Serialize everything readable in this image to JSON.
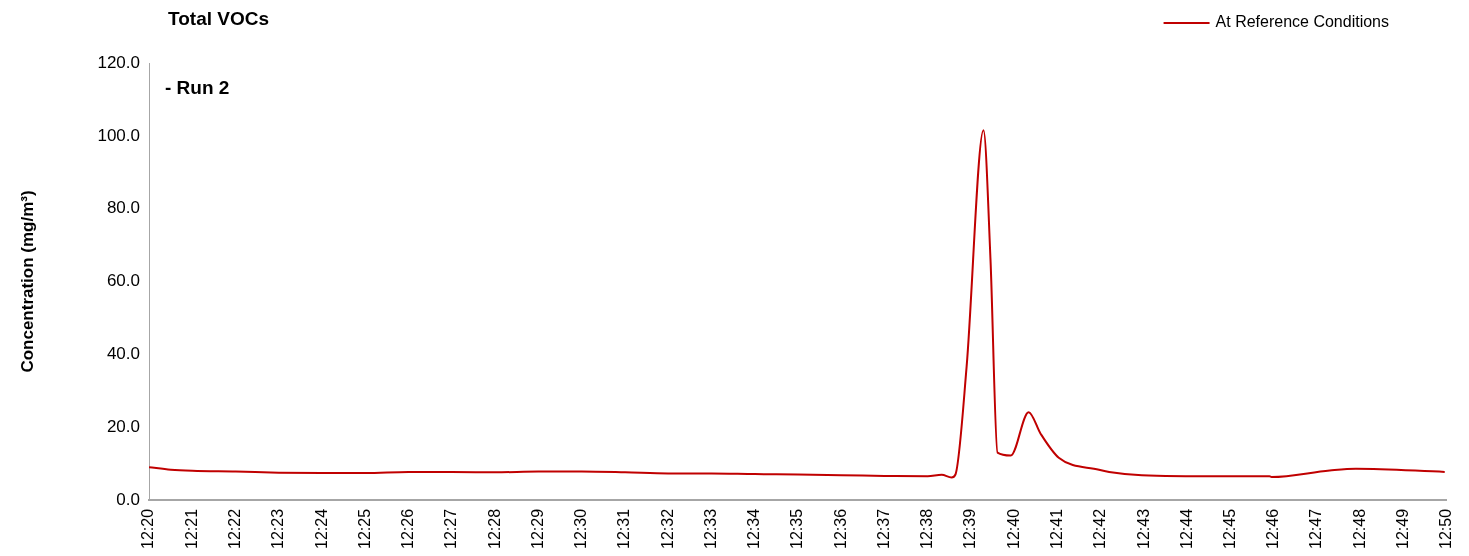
{
  "chart_data": {
    "type": "line",
    "title": "Total VOCs",
    "ylabel": "Concentration (mg/m³)",
    "annotations": [
      "- Run 2"
    ],
    "legend": "top right",
    "marker": "none",
    "line_style": "solid",
    "grid": false,
    "xlim": [
      12.3333,
      12.8333
    ],
    "xticks": [
      {
        "value": 12.3333,
        "label": "12:20"
      },
      {
        "value": 12.35,
        "label": "12:21"
      },
      {
        "value": 12.3667,
        "label": "12:22"
      },
      {
        "value": 12.3833,
        "label": "12:23"
      },
      {
        "value": 12.4,
        "label": "12:24"
      },
      {
        "value": 12.4167,
        "label": "12:25"
      },
      {
        "value": 12.4333,
        "label": "12:26"
      },
      {
        "value": 12.45,
        "label": "12:27"
      },
      {
        "value": 12.4667,
        "label": "12:28"
      },
      {
        "value": 12.4833,
        "label": "12:29"
      },
      {
        "value": 12.5,
        "label": "12:30"
      },
      {
        "value": 12.5167,
        "label": "12:31"
      },
      {
        "value": 12.5333,
        "label": "12:32"
      },
      {
        "value": 12.55,
        "label": "12:33"
      },
      {
        "value": 12.5667,
        "label": "12:34"
      },
      {
        "value": 12.5833,
        "label": "12:35"
      },
      {
        "value": 12.6,
        "label": "12:36"
      },
      {
        "value": 12.6167,
        "label": "12:37"
      },
      {
        "value": 12.6333,
        "label": "12:38"
      },
      {
        "value": 12.65,
        "label": "12:39"
      },
      {
        "value": 12.6667,
        "label": "12:40"
      },
      {
        "value": 12.6833,
        "label": "12:41"
      },
      {
        "value": 12.7,
        "label": "12:42"
      },
      {
        "value": 12.7167,
        "label": "12:43"
      },
      {
        "value": 12.7333,
        "label": "12:44"
      },
      {
        "value": 12.75,
        "label": "12:45"
      },
      {
        "value": 12.7667,
        "label": "12:46"
      },
      {
        "value": 12.7833,
        "label": "12:47"
      },
      {
        "value": 12.8,
        "label": "12:48"
      },
      {
        "value": 12.8167,
        "label": "12:49"
      },
      {
        "value": 12.8333,
        "label": "12:50"
      }
    ],
    "ylim": [
      0,
      120
    ],
    "yticks": [
      {
        "value": 0,
        "label": "0.0"
      },
      {
        "value": 20,
        "label": "20.0"
      },
      {
        "value": 40,
        "label": "40.0"
      },
      {
        "value": 60,
        "label": "60.0"
      },
      {
        "value": 80,
        "label": "80.0"
      },
      {
        "value": 100,
        "label": "100.0"
      },
      {
        "value": 120,
        "label": "120.0"
      }
    ],
    "series": [
      {
        "name": "At Reference Conditions",
        "color": "#c00000",
        "x": [
          12.3333,
          12.3417,
          12.35,
          12.3667,
          12.3833,
          12.4,
          12.4167,
          12.4333,
          12.45,
          12.4667,
          12.4833,
          12.5,
          12.5167,
          12.5333,
          12.55,
          12.5667,
          12.5833,
          12.6,
          12.6167,
          12.6333,
          12.6387,
          12.6425,
          12.644,
          12.6483,
          12.6548,
          12.6575,
          12.6602,
          12.6653,
          12.6722,
          12.6768,
          12.6838,
          12.6993,
          12.7032,
          12.7158,
          12.7467,
          12.765,
          12.7658,
          12.7882,
          12.7983,
          12.8325
        ],
        "values": [
          9.0,
          8.3,
          8.0,
          7.8,
          7.5,
          7.4,
          7.4,
          7.7,
          7.7,
          7.6,
          7.8,
          7.8,
          7.6,
          7.3,
          7.3,
          7.1,
          7.0,
          6.8,
          6.6,
          6.5,
          6.9,
          6.2,
          7.0,
          36.6,
          101.5,
          66,
          13,
          12.2,
          24.1,
          18.2,
          11.6,
          8.3,
          7.7,
          6.8,
          6.5,
          6.5,
          6.3,
          8.1,
          8.6,
          7.7
        ]
      }
    ]
  }
}
